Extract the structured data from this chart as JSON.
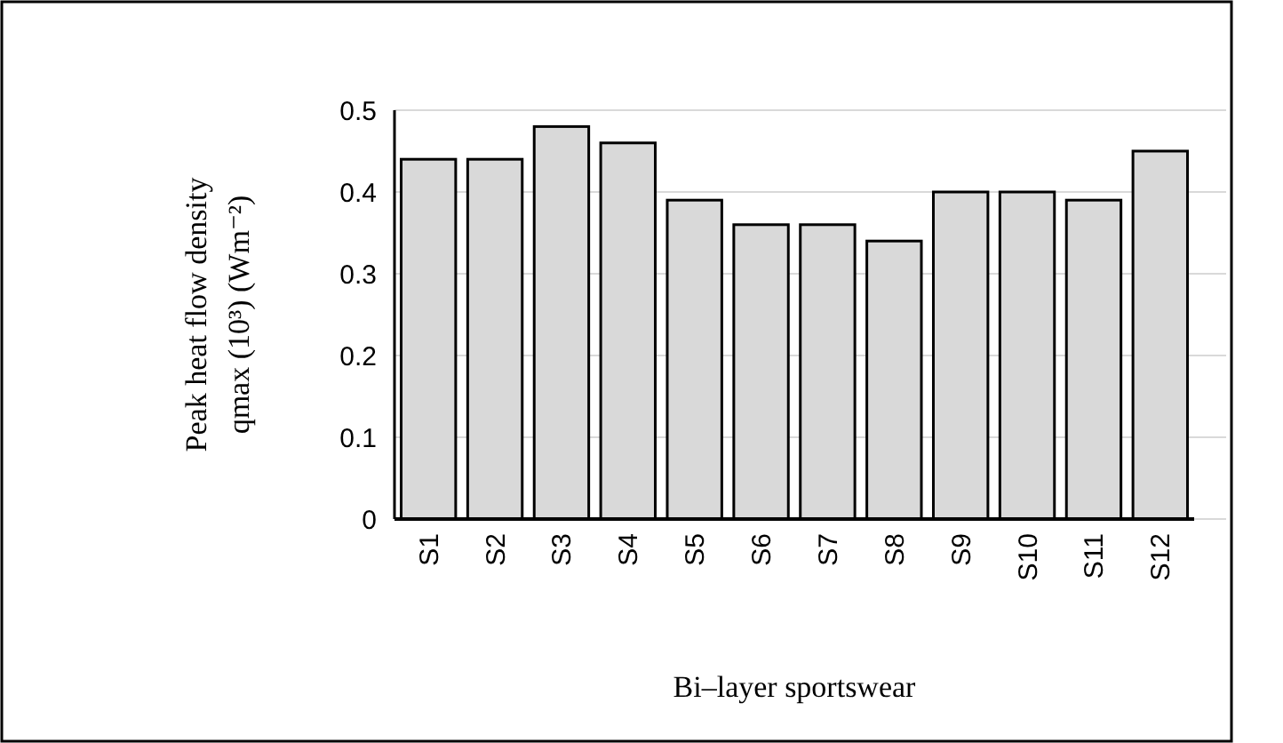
{
  "chart_data": {
    "type": "bar",
    "xlabel": "Bi–layer sportswear",
    "ylabel": "Peak heat flow density qmax (10³) (Wm⁻²)",
    "categories": [
      "S1",
      "S2",
      "S3",
      "S4",
      "S5",
      "S6",
      "S7",
      "S8",
      "S9",
      "S10",
      "S11",
      "S12"
    ],
    "values": [
      0.44,
      0.44,
      0.48,
      0.46,
      0.39,
      0.36,
      0.36,
      0.34,
      0.4,
      0.4,
      0.39,
      0.45
    ],
    "color": "#d9d9d9",
    "ylim": [
      0,
      0.5
    ],
    "yticks": [
      0,
      0.1,
      0.2,
      0.3,
      0.4,
      0.5
    ],
    "grid": "y"
  }
}
